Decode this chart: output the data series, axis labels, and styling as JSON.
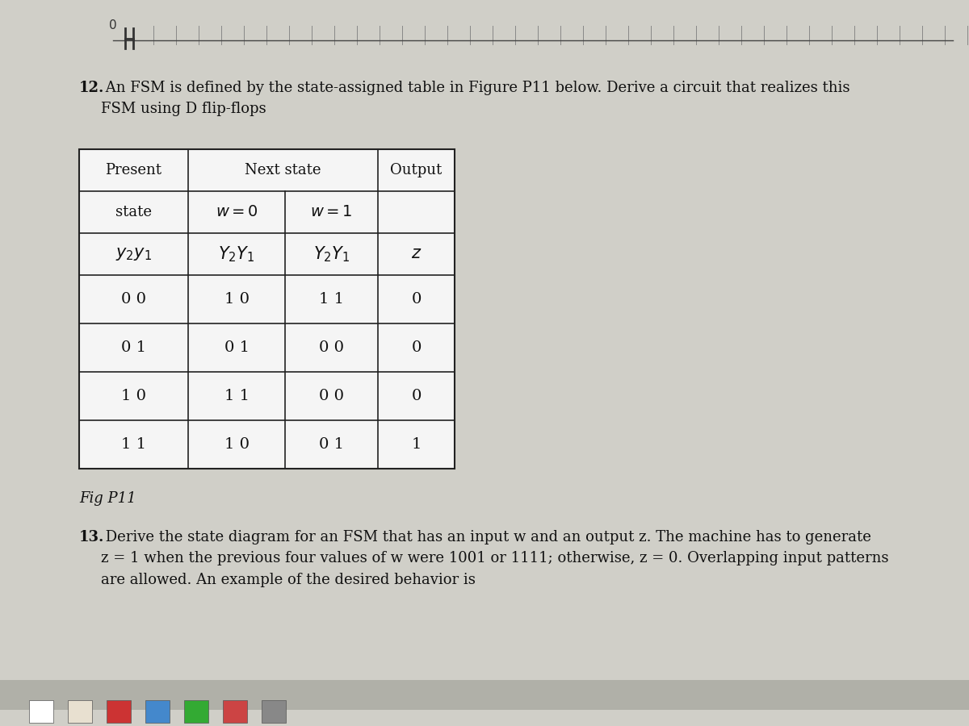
{
  "title_q12_bold": "12.",
  "title_q12_rest": " An FSM is defined by the state-assigned table in Figure P11 below. Derive a circuit that realizes this\nFSM using D flip-flops",
  "fig_caption": "Fig P11",
  "title_q13_bold": "13.",
  "title_q13_rest": " Derive the state diagram for an FSM that has an input w and an output z. The machine has to generate\nz = 1 when the previous four values of w were 1001 or 1111; otherwise, z = 0. Overlapping input patterns\nare allowed. An example of the desired behavior is",
  "table": {
    "data_rows": [
      [
        "0 0",
        "1 0",
        "1 1",
        "0"
      ],
      [
        "0 1",
        "0 1",
        "0 0",
        "0"
      ],
      [
        "1 0",
        "1 1",
        "0 0",
        "0"
      ],
      [
        "1 1",
        "1 0",
        "0 1",
        "1"
      ]
    ]
  },
  "page_bg": "#d0cfc8",
  "content_bg": "#d8d7d0",
  "table_bg": "#f5f5f5",
  "text_color": "#111111",
  "border_color": "#222222",
  "taskbar_bg": "#1a1a2e",
  "taskbar_strip": "#2a2a3e",
  "top_bg": "#c8c8c0",
  "waveform_bg": "#c8c8c0",
  "font_size_body": 13,
  "font_size_header": 13,
  "font_size_table_data": 14,
  "font_size_title": 13
}
